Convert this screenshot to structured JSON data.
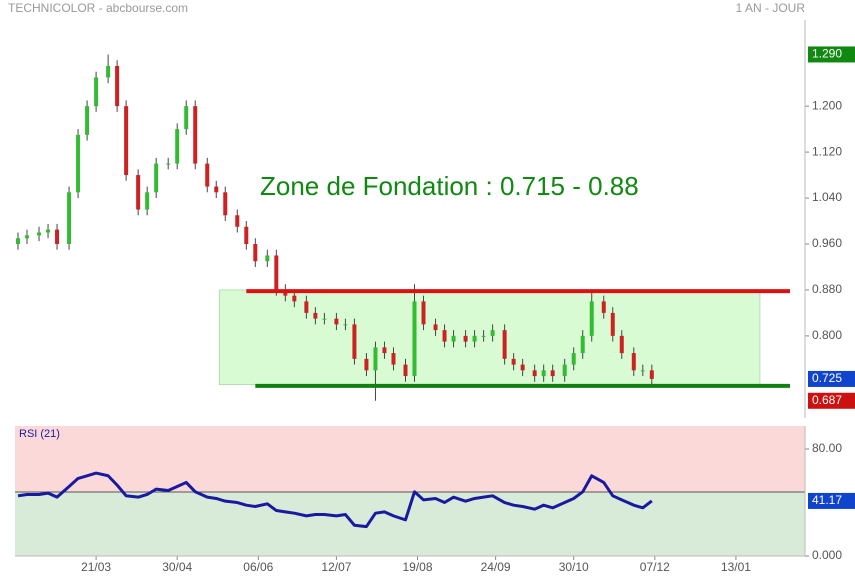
{
  "chart_data": [
    {
      "type": "candlestick",
      "title": "TECHNICOLOR - abcbourse.com",
      "subtitle": "1 AN - JOUR",
      "annotation": "Zone de Fondation :  0.715 - 0.88",
      "x": [
        0,
        3,
        7,
        10,
        13,
        17,
        20,
        23,
        26,
        30,
        33,
        36,
        40,
        43,
        46,
        50,
        53,
        56,
        59,
        63,
        66,
        69,
        73,
        76,
        79,
        83,
        86,
        89,
        92,
        96,
        99,
        102,
        106,
        109,
        112,
        116,
        119,
        122,
        125,
        129,
        132,
        135,
        139,
        142,
        145,
        149,
        152,
        155,
        158,
        162,
        165,
        168,
        172,
        175,
        178,
        182,
        185,
        188,
        191,
        195,
        198,
        201,
        205,
        208,
        211
      ],
      "open": [
        0.96,
        0.97,
        0.975,
        0.98,
        0.985,
        0.96,
        1.05,
        1.15,
        1.2,
        1.25,
        1.27,
        1.2,
        1.08,
        1.02,
        1.05,
        1.1,
        1.1,
        1.16,
        1.2,
        1.1,
        1.06,
        1.05,
        1.01,
        0.99,
        0.96,
        0.93,
        0.94,
        0.88,
        0.87,
        0.86,
        0.84,
        0.83,
        0.83,
        0.82,
        0.82,
        0.76,
        0.74,
        0.78,
        0.77,
        0.75,
        0.73,
        0.86,
        0.82,
        0.81,
        0.79,
        0.8,
        0.79,
        0.8,
        0.8,
        0.81,
        0.76,
        0.75,
        0.74,
        0.73,
        0.74,
        0.73,
        0.75,
        0.77,
        0.8,
        0.86,
        0.84,
        0.8,
        0.77,
        0.74,
        0.74
      ],
      "high": [
        0.98,
        0.985,
        0.99,
        0.995,
        0.995,
        1.06,
        1.16,
        1.21,
        1.26,
        1.29,
        1.28,
        1.21,
        1.09,
        1.06,
        1.11,
        1.11,
        1.17,
        1.21,
        1.21,
        1.11,
        1.07,
        1.06,
        1.02,
        1.0,
        0.97,
        0.95,
        0.95,
        0.89,
        0.88,
        0.87,
        0.85,
        0.84,
        0.84,
        0.83,
        0.83,
        0.77,
        0.79,
        0.79,
        0.78,
        0.76,
        0.89,
        0.87,
        0.83,
        0.82,
        0.81,
        0.81,
        0.81,
        0.81,
        0.82,
        0.82,
        0.77,
        0.76,
        0.75,
        0.75,
        0.75,
        0.76,
        0.78,
        0.81,
        0.88,
        0.87,
        0.85,
        0.81,
        0.78,
        0.75,
        0.75
      ],
      "low": [
        0.95,
        0.96,
        0.965,
        0.97,
        0.95,
        0.95,
        1.04,
        1.14,
        1.19,
        1.24,
        1.19,
        1.07,
        1.01,
        1.01,
        1.04,
        1.09,
        1.09,
        1.15,
        1.09,
        1.05,
        1.04,
        1.0,
        0.98,
        0.95,
        0.92,
        0.92,
        0.87,
        0.86,
        0.85,
        0.83,
        0.82,
        0.82,
        0.81,
        0.81,
        0.75,
        0.73,
        0.687,
        0.76,
        0.74,
        0.72,
        0.72,
        0.81,
        0.8,
        0.78,
        0.78,
        0.78,
        0.78,
        0.79,
        0.79,
        0.75,
        0.74,
        0.73,
        0.72,
        0.72,
        0.72,
        0.72,
        0.74,
        0.76,
        0.79,
        0.83,
        0.79,
        0.76,
        0.73,
        0.73,
        0.715
      ],
      "close": [
        0.97,
        0.975,
        0.98,
        0.985,
        0.96,
        1.05,
        1.15,
        1.2,
        1.25,
        1.27,
        1.2,
        1.08,
        1.02,
        1.05,
        1.1,
        1.1,
        1.16,
        1.2,
        1.1,
        1.06,
        1.05,
        1.01,
        0.99,
        0.96,
        0.93,
        0.94,
        0.88,
        0.87,
        0.86,
        0.84,
        0.83,
        0.83,
        0.82,
        0.82,
        0.76,
        0.74,
        0.78,
        0.77,
        0.75,
        0.73,
        0.86,
        0.82,
        0.81,
        0.79,
        0.8,
        0.79,
        0.8,
        0.8,
        0.81,
        0.76,
        0.75,
        0.74,
        0.73,
        0.74,
        0.73,
        0.75,
        0.77,
        0.8,
        0.86,
        0.84,
        0.8,
        0.77,
        0.74,
        0.74,
        0.725
      ],
      "up_color": "#33bb33",
      "down_color": "#cc2222",
      "zone": {
        "low": 0.715,
        "high": 0.88,
        "x": [
          67,
          247
        ],
        "color": "#d9fbd4"
      },
      "lines": [
        {
          "value": 0.878,
          "x": [
            76,
            257
          ],
          "color": "#e01010"
        },
        {
          "value": 0.713,
          "x": [
            79,
            257
          ],
          "color": "#108010"
        }
      ],
      "markers": [
        {
          "value": 1.29,
          "label": "1.290",
          "color": "#118811"
        },
        {
          "value": 0.725,
          "label": "0.725",
          "color": "#1144cc"
        },
        {
          "value": 0.687,
          "label": "0.687",
          "color": "#cc1111"
        }
      ],
      "xlim": [
        -1,
        262
      ],
      "ylim": [
        0.657,
        1.35
      ],
      "xticks": [
        {
          "value": 26,
          "label": "21/03"
        },
        {
          "value": 53,
          "label": "30/04"
        },
        {
          "value": 80,
          "label": "06/06"
        },
        {
          "value": 106,
          "label": "12/07"
        },
        {
          "value": 133,
          "label": "19/08"
        },
        {
          "value": 159,
          "label": "24/09"
        },
        {
          "value": 185,
          "label": "30/10"
        },
        {
          "value": 212,
          "label": "07/12"
        },
        {
          "value": 239,
          "label": "13/01"
        }
      ],
      "yticks": [
        {
          "value": 0.8,
          "label": "0.800"
        },
        {
          "value": 0.88,
          "label": "0.880"
        },
        {
          "value": 0.96,
          "label": "0.960"
        },
        {
          "value": 1.04,
          "label": "1.040"
        },
        {
          "value": 1.12,
          "label": "1.120"
        },
        {
          "value": 1.2,
          "label": "1.200"
        }
      ]
    },
    {
      "type": "line",
      "title": "RSI (21)",
      "series": [
        {
          "name": "RSI (21)",
          "color": "#1a1aa0",
          "values": [
            45,
            46,
            46,
            47,
            44,
            52,
            58,
            60,
            62,
            60,
            53,
            45,
            44,
            46,
            50,
            49,
            52,
            55,
            48,
            44,
            43,
            41,
            40,
            38,
            37,
            39,
            34,
            33,
            32,
            30,
            31,
            31,
            30,
            31,
            23,
            22,
            32,
            33,
            30,
            27,
            48,
            42,
            43,
            40,
            44,
            41,
            43,
            44,
            45,
            40,
            38,
            37,
            35,
            38,
            36,
            40,
            43,
            48,
            60,
            55,
            45,
            42,
            38,
            36,
            41.17
          ]
        }
      ],
      "markers": [
        {
          "value": 41.17,
          "color": "#1144cc"
        }
      ],
      "ylim": [
        0,
        97.2
      ],
      "yticks": [
        {
          "value": 0,
          "label": "0.000"
        },
        {
          "value": 80,
          "label": "80.00"
        }
      ]
    }
  ]
}
